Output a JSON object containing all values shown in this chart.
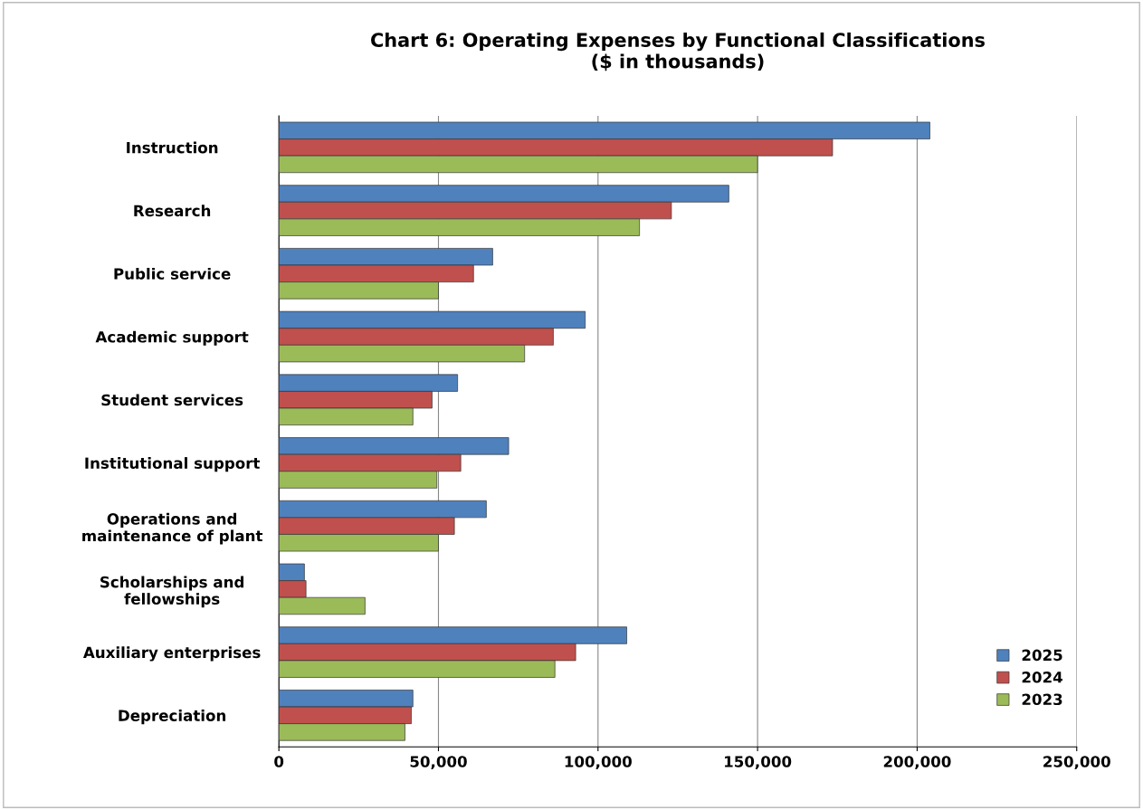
{
  "chart_data": {
    "type": "bar",
    "orientation": "horizontal",
    "title": "Chart 6: Operating Expenses by Functional Classifications\n($ in thousands)",
    "categories": [
      "Instruction",
      "Research",
      "Public service",
      "Academic support",
      "Student services",
      "Institutional support",
      "Operations and\nmaintenance of plant",
      "Scholarships and\nfellowships",
      "Auxiliary enterprises",
      "Depreciation"
    ],
    "series": [
      {
        "name": "2025",
        "color": "#4f81bd",
        "values": [
          204000,
          141000,
          67000,
          96000,
          56000,
          72000,
          65000,
          8000,
          109000,
          42000
        ]
      },
      {
        "name": "2024",
        "color": "#c0504d",
        "values": [
          173500,
          123000,
          61000,
          86000,
          48000,
          57000,
          55000,
          8500,
          93000,
          41500
        ]
      },
      {
        "name": "2023",
        "color": "#9bbb59",
        "values": [
          150000,
          113000,
          50000,
          77000,
          42000,
          49500,
          50000,
          27000,
          86500,
          39500
        ]
      }
    ],
    "xlim": [
      0,
      250000
    ],
    "xticks": [
      {
        "value": 0,
        "label": "0"
      },
      {
        "value": 50000,
        "label": "50,000"
      },
      {
        "value": 100000,
        "label": "100,000"
      },
      {
        "value": 150000,
        "label": "150,000"
      },
      {
        "value": 200000,
        "label": "200,000"
      },
      {
        "value": 250000,
        "label": "250,000"
      }
    ],
    "grid": "x",
    "legend": "bottom right"
  }
}
